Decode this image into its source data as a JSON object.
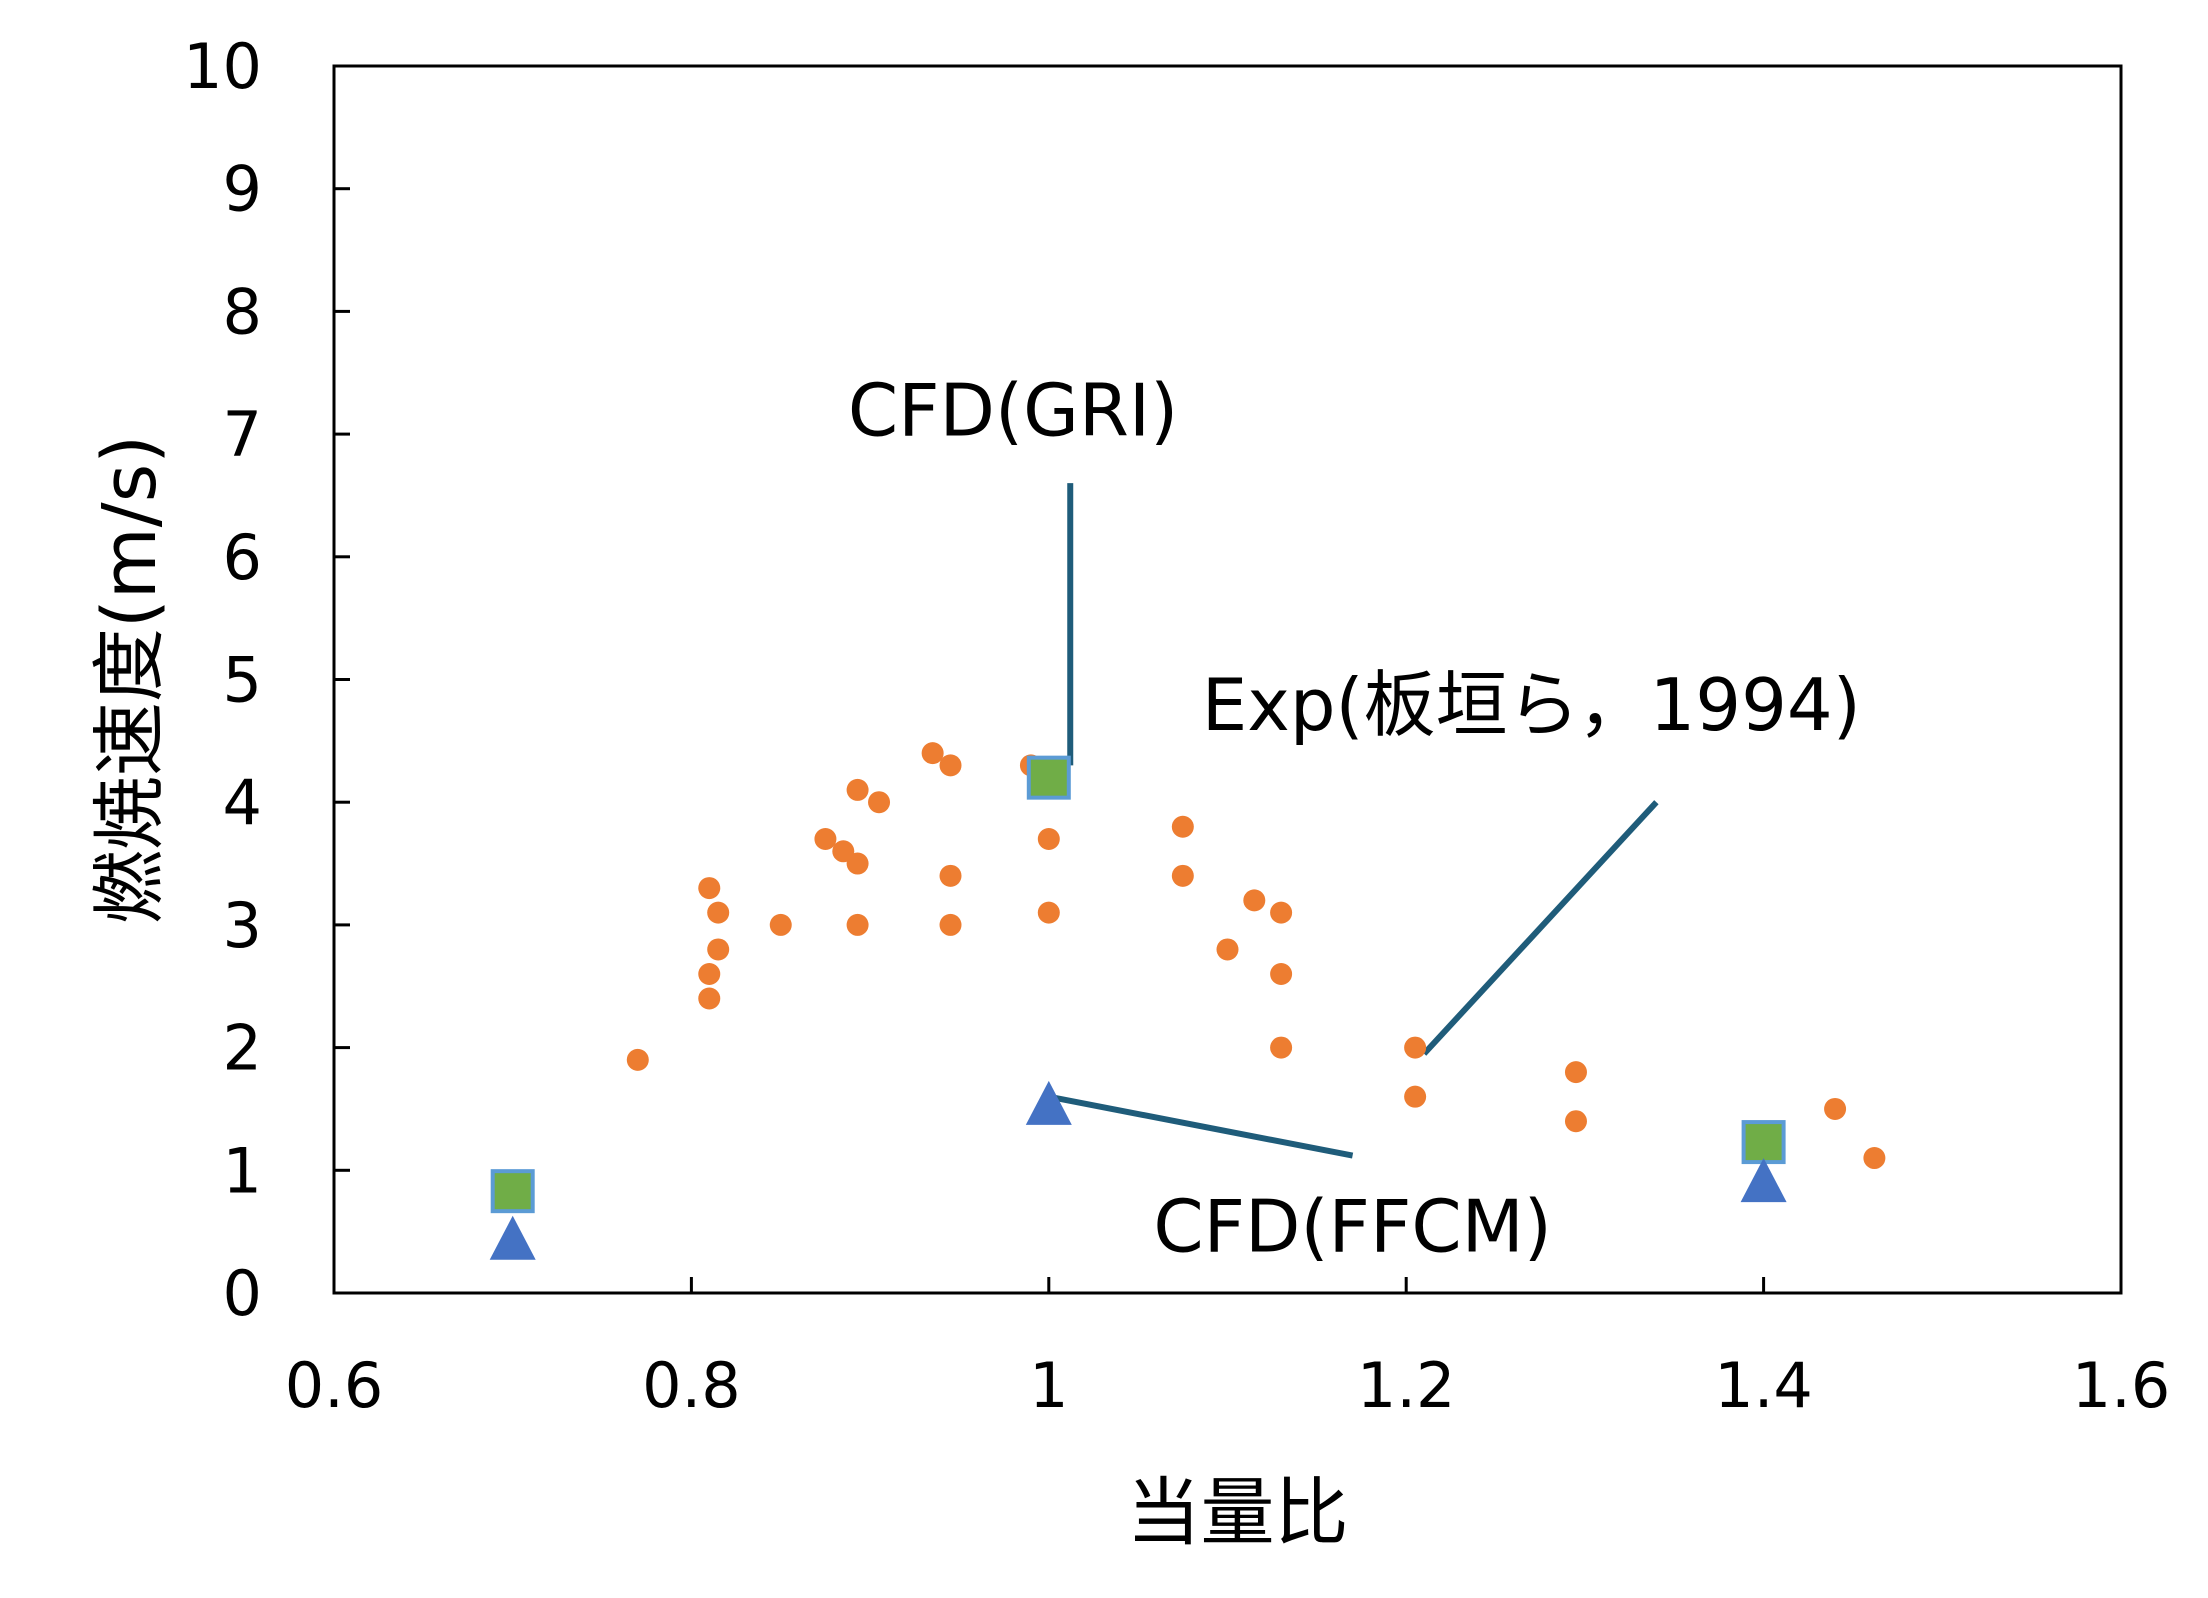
{
  "chart_data": {
    "type": "scatter",
    "xlabel": "当量比",
    "ylabel": "燃焼速度(m/s)",
    "xlim": [
      0.6,
      1.6
    ],
    "ylim": [
      0,
      10
    ],
    "x_ticks": [
      "0.6",
      "0.8",
      "1",
      "1.2",
      "1.4",
      "1.6"
    ],
    "y_ticks": [
      "0",
      "1",
      "2",
      "3",
      "4",
      "5",
      "6",
      "7",
      "8",
      "9",
      "10"
    ],
    "grid": false,
    "legend": "none",
    "series": [
      {
        "name": "Exp(板垣ら，1994)",
        "marker": "circle",
        "color": "#ED7D31",
        "points": [
          [
            0.77,
            1.9
          ],
          [
            0.81,
            3.3
          ],
          [
            0.81,
            2.6
          ],
          [
            0.81,
            2.4
          ],
          [
            0.815,
            3.1
          ],
          [
            0.815,
            2.8
          ],
          [
            0.85,
            3.0
          ],
          [
            0.875,
            3.7
          ],
          [
            0.885,
            3.6
          ],
          [
            0.893,
            4.1
          ],
          [
            0.893,
            3.5
          ],
          [
            0.893,
            3.0
          ],
          [
            0.905,
            4.0
          ],
          [
            0.935,
            4.4
          ],
          [
            0.945,
            4.3
          ],
          [
            0.945,
            3.4
          ],
          [
            0.945,
            3.0
          ],
          [
            0.99,
            4.3
          ],
          [
            1.0,
            3.7
          ],
          [
            1.0,
            3.1
          ],
          [
            1.075,
            3.8
          ],
          [
            1.075,
            3.4
          ],
          [
            1.1,
            2.8
          ],
          [
            1.115,
            3.2
          ],
          [
            1.13,
            3.1
          ],
          [
            1.13,
            2.6
          ],
          [
            1.13,
            2.0
          ],
          [
            1.205,
            2.0
          ],
          [
            1.205,
            1.6
          ],
          [
            1.295,
            1.8
          ],
          [
            1.295,
            1.4
          ],
          [
            1.44,
            1.5
          ],
          [
            1.462,
            1.1
          ]
        ]
      },
      {
        "name": "CFD(GRI)",
        "marker": "square",
        "color": "#70AD47",
        "edge_color": "#5B9BD5",
        "points": [
          [
            0.7,
            0.83
          ],
          [
            1.0,
            4.2
          ],
          [
            1.4,
            1.23
          ]
        ]
      },
      {
        "name": "CFD(FFCM)",
        "marker": "triangle",
        "color": "#4472C4",
        "points": [
          [
            0.7,
            0.45
          ],
          [
            1.0,
            1.55
          ],
          [
            1.4,
            0.92
          ]
        ]
      }
    ],
    "annotations": [
      {
        "text": "CFD(GRI)",
        "label_at": [
          0.98,
          7.2
        ],
        "line_from": [
          1.012,
          6.6
        ],
        "line_to": [
          1.012,
          4.3
        ]
      },
      {
        "text": "Exp(板垣ら，1994)",
        "label_at": [
          1.27,
          4.8
        ],
        "line_from": [
          1.34,
          4.0
        ],
        "line_to": [
          1.21,
          1.95
        ]
      },
      {
        "text": "CFD(FFCM)",
        "label_at": [
          1.17,
          0.55
        ],
        "line_from": [
          1.17,
          1.12
        ],
        "line_to": [
          1.0,
          1.6
        ]
      }
    ],
    "line_color": "#1F5C7A"
  }
}
